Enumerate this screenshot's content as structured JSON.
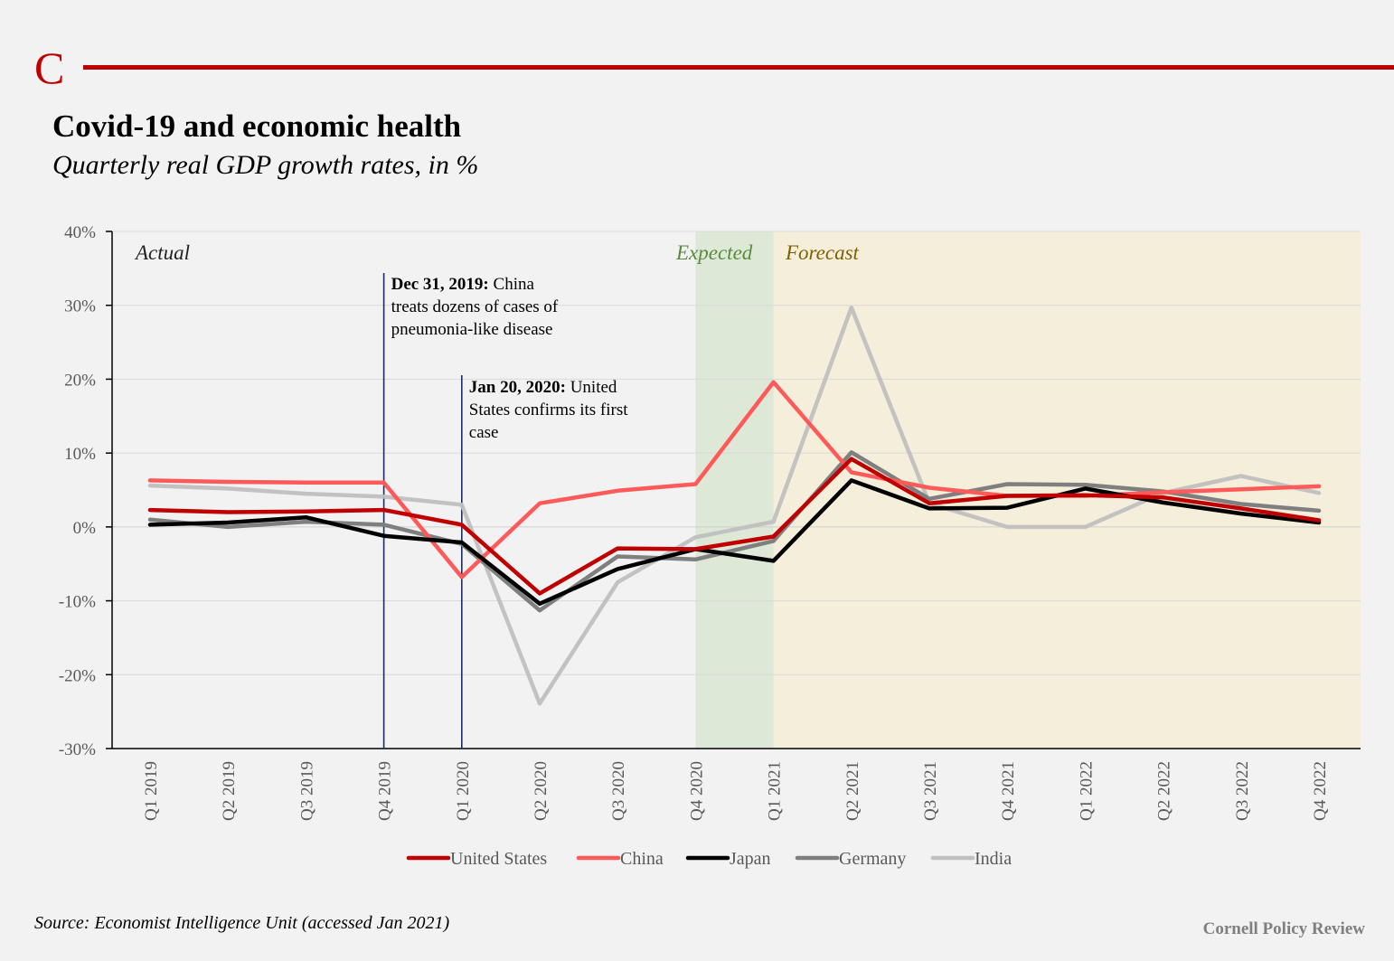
{
  "header": {
    "logo_letter": "C",
    "title": "Covid-19 and economic health",
    "subtitle": "Quarterly real GDP growth rates, in %"
  },
  "footer": {
    "source": "Source: Economist Intelligence Unit (accessed Jan 2021)",
    "credit": "Cornell Policy Review"
  },
  "colors": {
    "brand_red": "#c00000",
    "expected_band": "#dde8d7",
    "forecast_band": "#f5eedb",
    "annotation_line": "#1f2d5a"
  },
  "chart_data": {
    "type": "line",
    "categories": [
      "Q1 2019",
      "Q2 2019",
      "Q3 2019",
      "Q4 2019",
      "Q1 2020",
      "Q2 2020",
      "Q3 2020",
      "Q4 2020",
      "Q1 2021",
      "Q2 2021",
      "Q3 2021",
      "Q4 2021",
      "Q1 2022",
      "Q2 2022",
      "Q3 2022",
      "Q4 2022"
    ],
    "ylim": [
      -30,
      40
    ],
    "yticks": [
      40,
      30,
      20,
      10,
      0,
      -10,
      -20,
      -30
    ],
    "ytick_labels": [
      "40%",
      "30%",
      "20%",
      "10%",
      "0%",
      "-10%",
      "-20%",
      "-30%"
    ],
    "grid": true,
    "legend_position": "bottom",
    "regions": [
      {
        "label": "Actual",
        "from": "Q1 2019",
        "to": "Q4 2020",
        "color": "#222222"
      },
      {
        "label": "Expected",
        "from": "Q4 2020",
        "to": "Q1 2021",
        "color": "#5a8a3c"
      },
      {
        "label": "Forecast",
        "from": "Q1 2021",
        "to": "Q4 2022",
        "color": "#7f6000"
      }
    ],
    "annotations": [
      {
        "at": "Q4 2019",
        "bold": "Dec 31, 2019:",
        "lines": [
          "China",
          "treats dozens of cases of",
          "pneumonia-like disease"
        ]
      },
      {
        "at": "Q1 2020",
        "bold": "Jan 20, 2020:",
        "lines": [
          "United",
          "States confirms its first",
          "case"
        ]
      }
    ],
    "series": [
      {
        "name": "United States",
        "color": "#c00000",
        "values": [
          2.3,
          2.0,
          2.1,
          2.3,
          0.3,
          -9.0,
          -2.9,
          -3.0,
          -1.3,
          9.2,
          3.2,
          4.2,
          4.3,
          4.0,
          2.5,
          0.9
        ]
      },
      {
        "name": "China",
        "color": "#ff5a5a",
        "values": [
          6.3,
          6.1,
          6.0,
          6.0,
          -6.8,
          3.2,
          4.9,
          5.8,
          19.6,
          7.4,
          5.3,
          4.2,
          4.2,
          4.7,
          5.1,
          5.5
        ]
      },
      {
        "name": "Japan",
        "color": "#000000",
        "values": [
          0.3,
          0.6,
          1.3,
          -1.2,
          -2.1,
          -10.4,
          -5.7,
          -3.0,
          -4.6,
          6.3,
          2.5,
          2.6,
          5.2,
          3.3,
          1.8,
          0.6
        ]
      },
      {
        "name": "Germany",
        "color": "#7f7f7f",
        "values": [
          1.0,
          0.0,
          0.7,
          0.3,
          -2.3,
          -11.3,
          -4.0,
          -4.4,
          -1.9,
          10.1,
          3.8,
          5.8,
          5.7,
          4.8,
          3.1,
          2.2
        ]
      },
      {
        "name": "India",
        "color": "#bfbfbf",
        "values": [
          5.6,
          5.2,
          4.5,
          4.1,
          3.0,
          -23.9,
          -7.5,
          -1.4,
          0.7,
          29.7,
          3.2,
          0.0,
          0.0,
          4.6,
          6.9,
          4.6
        ]
      }
    ]
  }
}
